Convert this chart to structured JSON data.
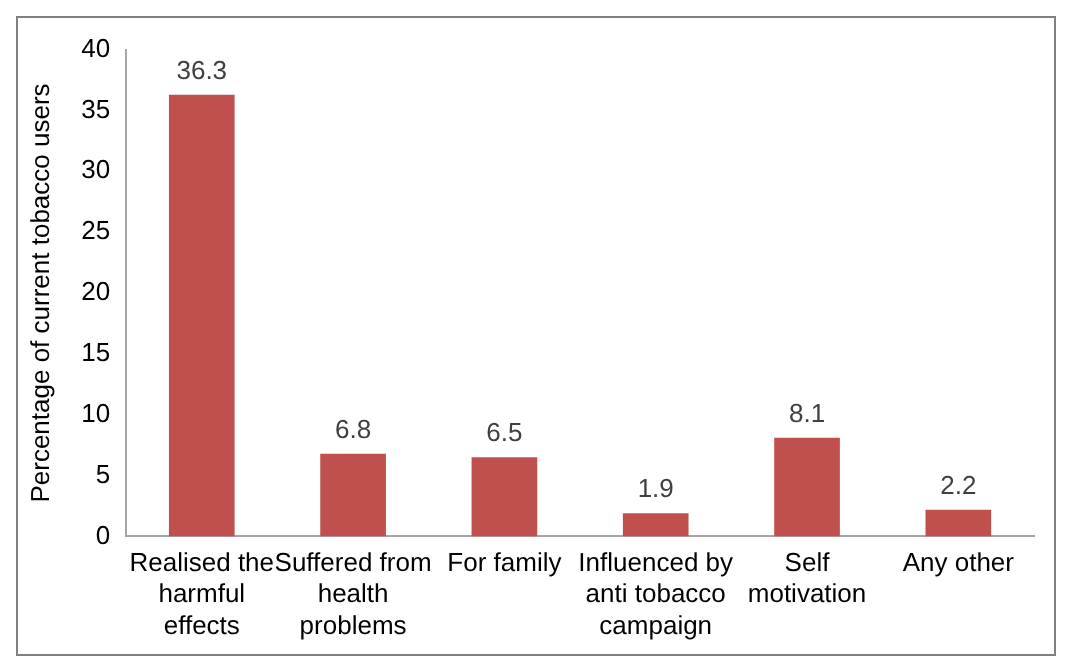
{
  "chart_data": {
    "type": "bar",
    "ylabel": "Percentage of current tobacco users",
    "categories": [
      "Realised the harmful effects",
      "Suffered from health problems",
      "For family",
      "Influenced by anti tobacco campaign",
      "Self motivation",
      "Any other"
    ],
    "values": [
      36.3,
      6.8,
      6.5,
      1.9,
      8.1,
      2.2
    ],
    "color": "#c0504d",
    "ylim": [
      0,
      40
    ],
    "yticks": [
      0,
      5,
      10,
      15,
      20,
      25,
      30,
      35,
      40
    ],
    "grid": false,
    "data_labels": true
  }
}
